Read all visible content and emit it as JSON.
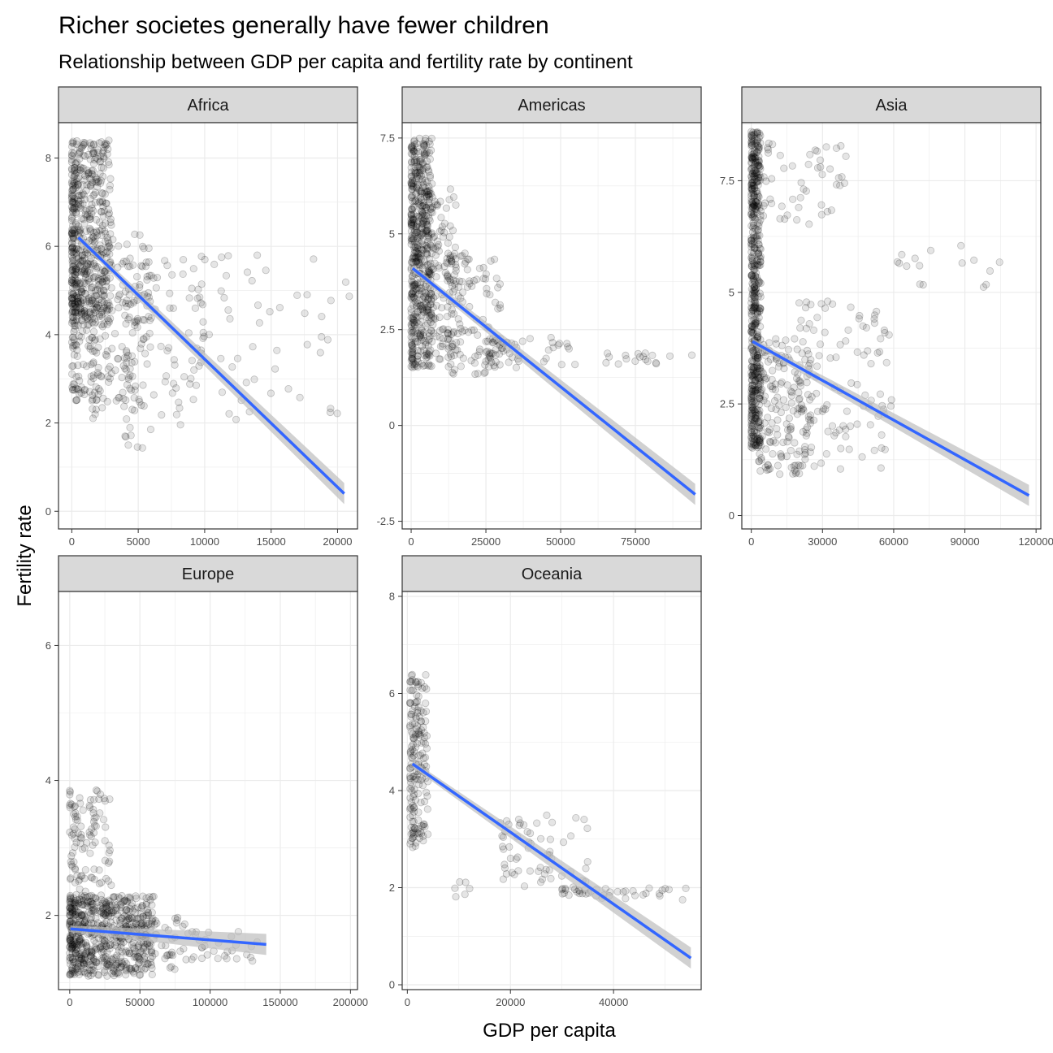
{
  "chart_data": {
    "type": "scatter",
    "title": "Richer societes generally have fewer children",
    "subtitle": "Relationship between GDP per capita and fertility rate by continent",
    "xlabel": "GDP per capita",
    "ylabel": "Fertility rate",
    "grid": true,
    "colors": {
      "points": "#000000",
      "trend": "#3366ff",
      "band": "#bdbdbd",
      "strip": "#d9d9d9",
      "grid": "#ebebeb"
    },
    "facets": [
      {
        "name": "Africa",
        "xlim": [
          -1000,
          21500
        ],
        "ylim": [
          -0.4,
          8.8
        ],
        "xticks": [
          0,
          5000,
          10000,
          15000,
          20000
        ],
        "yticks": [
          0,
          2,
          4,
          6,
          8
        ],
        "trend": {
          "x": [
            500,
            20500
          ],
          "y": [
            6.2,
            0.4
          ]
        },
        "clusters": [
          {
            "x": [
              0,
              3000
            ],
            "y": [
              4.2,
              8.4
            ],
            "n": 500
          },
          {
            "x": [
              0,
              1500
            ],
            "y": [
              2.5,
              6.0
            ],
            "n": 120
          },
          {
            "x": [
              1500,
              6000
            ],
            "y": [
              2.0,
              6.3
            ],
            "n": 180
          },
          {
            "x": [
              4000,
              10000
            ],
            "y": [
              1.4,
              5.8
            ],
            "n": 90
          },
          {
            "x": [
              9000,
              21000
            ],
            "y": [
              2.0,
              5.8
            ],
            "n": 60
          }
        ]
      },
      {
        "name": "Americas",
        "xlim": [
          -3000,
          97000
        ],
        "ylim": [
          -2.7,
          7.9
        ],
        "xticks": [
          0,
          25000,
          50000,
          75000
        ],
        "yticks": [
          -2.5,
          0.0,
          2.5,
          5.0,
          7.5
        ],
        "trend": {
          "x": [
            500,
            95000
          ],
          "y": [
            4.1,
            -1.8
          ]
        },
        "clusters": [
          {
            "x": [
              0,
              7000
            ],
            "y": [
              1.5,
              7.5
            ],
            "n": 500
          },
          {
            "x": [
              5000,
              15000
            ],
            "y": [
              1.6,
              6.2
            ],
            "n": 140
          },
          {
            "x": [
              12000,
              30000
            ],
            "y": [
              1.3,
              4.5
            ],
            "n": 120
          },
          {
            "x": [
              25000,
              55000
            ],
            "y": [
              1.5,
              2.3
            ],
            "n": 60
          },
          {
            "x": [
              65000,
              95000
            ],
            "y": [
              1.6,
              1.9
            ],
            "n": 18
          }
        ]
      },
      {
        "name": "Asia",
        "xlim": [
          -4000,
          122000
        ],
        "ylim": [
          -0.3,
          8.8
        ],
        "xticks": [
          0,
          30000,
          60000,
          90000,
          120000
        ],
        "yticks": [
          0.0,
          2.5,
          5.0,
          7.5
        ],
        "trend": {
          "x": [
            500,
            117000
          ],
          "y": [
            3.9,
            0.45
          ]
        },
        "clusters": [
          {
            "x": [
              0,
              4000
            ],
            "y": [
              1.5,
              8.6
            ],
            "n": 550
          },
          {
            "x": [
              3000,
              25000
            ],
            "y": [
              0.9,
              4.0
            ],
            "n": 160
          },
          {
            "x": [
              5000,
              40000
            ],
            "y": [
              6.5,
              8.4
            ],
            "n": 50
          },
          {
            "x": [
              20000,
              60000
            ],
            "y": [
              1.0,
              4.8
            ],
            "n": 120
          },
          {
            "x": [
              60000,
              117000
            ],
            "y": [
              5.1,
              6.1
            ],
            "n": 16
          }
        ]
      },
      {
        "name": "Europe",
        "xlim": [
          -8000,
          205000
        ],
        "ylim": [
          0.9,
          6.8
        ],
        "xticks": [
          0,
          50000,
          100000,
          150000,
          200000
        ],
        "yticks": [
          2,
          4,
          6
        ],
        "trend": {
          "x": [
            500,
            140000
          ],
          "y": [
            1.8,
            1.57
          ]
        },
        "clusters": [
          {
            "x": [
              0,
              60000
            ],
            "y": [
              1.1,
              2.3
            ],
            "n": 600
          },
          {
            "x": [
              0,
              30000
            ],
            "y": [
              2.0,
              3.9
            ],
            "n": 120
          },
          {
            "x": [
              40000,
              90000
            ],
            "y": [
              1.2,
              2.0
            ],
            "n": 90
          },
          {
            "x": [
              90000,
              140000
            ],
            "y": [
              1.3,
              1.8
            ],
            "n": 25
          }
        ]
      },
      {
        "name": "Oceania",
        "xlim": [
          -1000,
          57000
        ],
        "ylim": [
          -0.1,
          8.1
        ],
        "xticks": [
          0,
          20000,
          40000
        ],
        "yticks": [
          0,
          2,
          4,
          6,
          8
        ],
        "trend": {
          "x": [
            1000,
            55000
          ],
          "y": [
            4.55,
            0.55
          ]
        },
        "clusters": [
          {
            "x": [
              500,
              4000
            ],
            "y": [
              2.8,
              6.4
            ],
            "n": 180
          },
          {
            "x": [
              9000,
              13000
            ],
            "y": [
              1.8,
              2.3
            ],
            "n": 6
          },
          {
            "x": [
              18000,
              35000
            ],
            "y": [
              2.0,
              3.5
            ],
            "n": 60
          },
          {
            "x": [
              30000,
              55000
            ],
            "y": [
              1.75,
              2.0
            ],
            "n": 40
          }
        ]
      }
    ]
  }
}
